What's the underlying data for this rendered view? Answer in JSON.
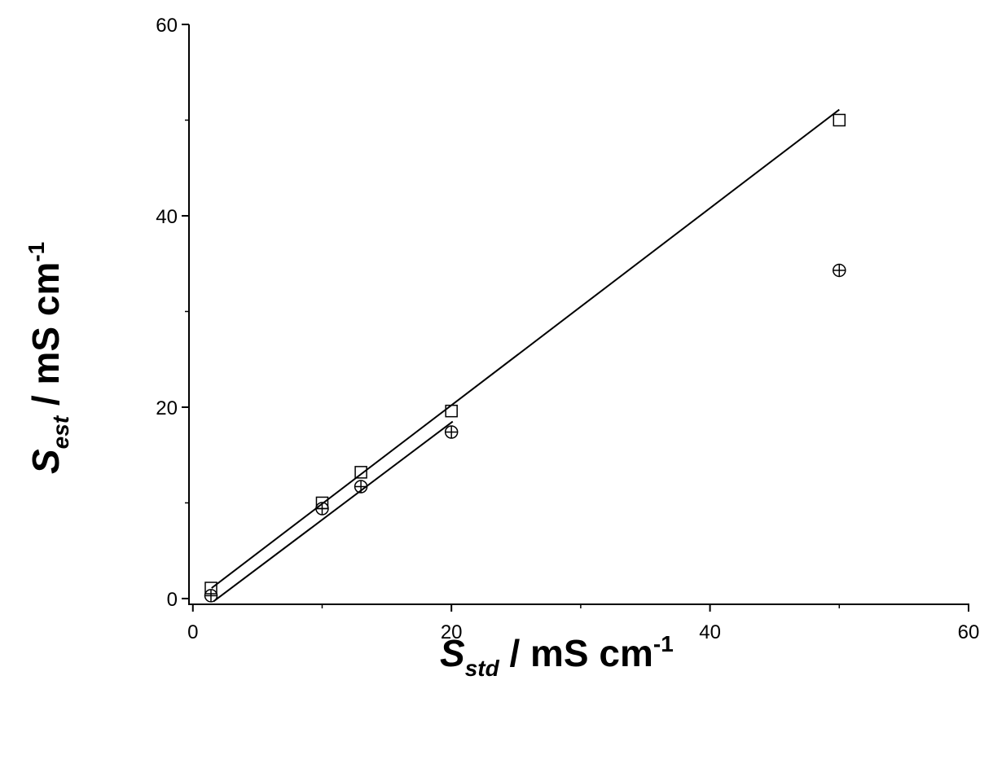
{
  "chart_data": {
    "type": "scatter",
    "x_label": {
      "symbol": "S",
      "subscript": "std",
      "unit": " / mS cm",
      "superscript": "-1"
    },
    "y_label": {
      "symbol": "S",
      "subscript": "est",
      "unit": " / mS cm",
      "superscript": "-1"
    },
    "xlim": [
      -0.3,
      60
    ],
    "ylim": [
      -0.6,
      60
    ],
    "xticks": [
      0,
      20,
      40,
      60
    ],
    "yticks": [
      0,
      20,
      40,
      60
    ],
    "xminor_ticks": [
      10,
      30,
      50
    ],
    "yminor_ticks": [
      10,
      30,
      50
    ],
    "series": [
      {
        "marker": "square",
        "color": "#000000",
        "x": [
          1.4,
          10,
          13,
          20,
          50
        ],
        "values": [
          1.1,
          10.0,
          13.2,
          19.6,
          50.0
        ]
      },
      {
        "marker": "circle-plus",
        "color": "#000000",
        "x": [
          1.4,
          10,
          13,
          20,
          50
        ],
        "values": [
          0.3,
          9.4,
          11.7,
          17.4,
          34.3
        ]
      },
      {
        "marker": "line",
        "color": "#000000",
        "x": [
          1.45,
          50
        ],
        "values": [
          1.1,
          51.1
        ]
      },
      {
        "marker": "line",
        "color": "#000000",
        "x": [
          1.6,
          20.1
        ],
        "values": [
          -0.3,
          18.5
        ]
      }
    ]
  }
}
